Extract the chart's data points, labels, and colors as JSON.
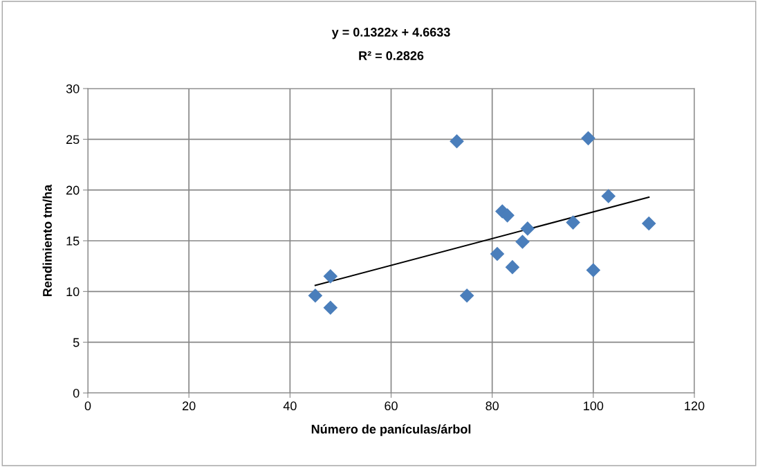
{
  "chart_data": {
    "type": "scatter",
    "title": "y = 0.1322x + 4.6633",
    "subtitle": "R² = 0.2826",
    "xlabel": "Número de panículas/árbol",
    "ylabel": "Rendimiento tm/ha",
    "xlim": [
      0,
      120
    ],
    "xticks": [
      0,
      20,
      40,
      60,
      80,
      100,
      120
    ],
    "ylim": [
      0,
      30
    ],
    "yticks": [
      0,
      5,
      10,
      15,
      20,
      25,
      30
    ],
    "grid": true,
    "series": [
      {
        "marker": "diamond",
        "color": "#4a7ebb",
        "x": [
          45,
          48,
          48,
          73,
          75,
          81,
          82,
          83,
          84,
          86,
          87,
          96,
          99,
          100,
          103,
          111
        ],
        "values": [
          9.6,
          11.5,
          8.4,
          24.8,
          9.6,
          13.7,
          17.9,
          17.5,
          12.4,
          14.9,
          16.2,
          16.8,
          25.1,
          12.1,
          19.4,
          16.7
        ]
      },
      {
        "type": "line",
        "marker": "none",
        "color": "#000000",
        "x": [
          45,
          111
        ],
        "values": [
          10.6,
          19.3
        ]
      }
    ]
  }
}
